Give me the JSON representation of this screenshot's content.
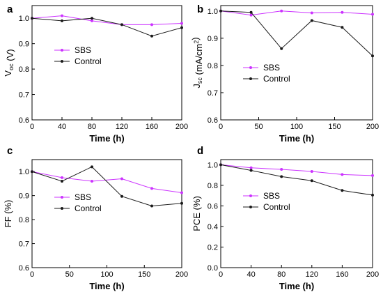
{
  "colors": {
    "sbs": "#cc33ff",
    "control": "#1a1a1a"
  },
  "chart_data": [
    {
      "panel": "a",
      "type": "line",
      "xlabel": "Time (h)",
      "ylabel": {
        "main": "V",
        "sub": "oc",
        "unit": " (V)"
      },
      "xlim": [
        0,
        200
      ],
      "ylim": [
        0.6,
        1.05
      ],
      "xticks": [
        0,
        40,
        80,
        120,
        160,
        200
      ],
      "yticks": [
        0.6,
        0.7,
        0.8,
        0.9,
        1.0
      ],
      "ytick_labels": [
        "0.6",
        "0.7",
        "0.8",
        "0.9",
        "1.0"
      ],
      "x": [
        0,
        40,
        80,
        120,
        160,
        200
      ],
      "legend_position": "middle-left",
      "series": [
        {
          "name": "SBS",
          "color_key": "sbs",
          "values": [
            1.0,
            1.01,
            0.99,
            0.975,
            0.975,
            0.98
          ]
        },
        {
          "name": "Control",
          "color_key": "control",
          "values": [
            1.0,
            0.99,
            1.0,
            0.975,
            0.93,
            0.963
          ]
        }
      ]
    },
    {
      "panel": "b",
      "type": "line",
      "xlabel": "Time (h)",
      "ylabel": {
        "main": "J",
        "sub": "sc",
        "unit": " (mA/cm",
        "sup": "2",
        "tail": ")"
      },
      "xlim": [
        0,
        200
      ],
      "ylim": [
        0.6,
        1.02
      ],
      "xticks": [
        0,
        50,
        100,
        150,
        200
      ],
      "yticks": [
        0.6,
        0.7,
        0.8,
        0.9,
        1.0
      ],
      "ytick_labels": [
        "0.6",
        "0.7",
        "0.8",
        "0.9",
        "1.0"
      ],
      "x": [
        0,
        40,
        80,
        120,
        160,
        200
      ],
      "legend_position": "middle-right",
      "series": [
        {
          "name": "SBS",
          "color_key": "sbs",
          "values": [
            1.0,
            0.985,
            1.0,
            0.993,
            0.995,
            0.988
          ]
        },
        {
          "name": "Control",
          "color_key": "control",
          "values": [
            1.0,
            0.995,
            0.862,
            0.965,
            0.94,
            0.835
          ]
        }
      ]
    },
    {
      "panel": "c",
      "type": "line",
      "xlabel": "Time (h)",
      "ylabel": {
        "main": "FF (%)"
      },
      "xlim": [
        0,
        200
      ],
      "ylim": [
        0.6,
        1.05
      ],
      "xticks": [
        0,
        50,
        100,
        150,
        200
      ],
      "yticks": [
        0.6,
        0.7,
        0.8,
        0.9,
        1.0
      ],
      "ytick_labels": [
        "0.6",
        "0.7",
        "0.8",
        "0.9",
        "1.0"
      ],
      "x": [
        0,
        40,
        80,
        120,
        160,
        200
      ],
      "legend_position": "middle-left",
      "series": [
        {
          "name": "SBS",
          "color_key": "sbs",
          "values": [
            1.0,
            0.975,
            0.96,
            0.97,
            0.93,
            0.912
          ]
        },
        {
          "name": "Control",
          "color_key": "control",
          "values": [
            1.0,
            0.96,
            1.02,
            0.897,
            0.857,
            0.868
          ]
        }
      ]
    },
    {
      "panel": "d",
      "type": "line",
      "xlabel": "Time (h)",
      "ylabel": {
        "main": "PCE (%)"
      },
      "xlim": [
        0,
        200
      ],
      "ylim": [
        0.0,
        1.05
      ],
      "xticks": [
        0,
        40,
        80,
        120,
        160,
        200
      ],
      "yticks": [
        0.0,
        0.2,
        0.4,
        0.6,
        0.8,
        1.0
      ],
      "ytick_labels": [
        "0.0",
        "0.2",
        "0.4",
        "0.6",
        "0.8",
        "1.0"
      ],
      "x": [
        0,
        40,
        80,
        120,
        160,
        200
      ],
      "legend_position": "middle-left",
      "series": [
        {
          "name": "SBS",
          "color_key": "sbs",
          "values": [
            1.0,
            0.97,
            0.955,
            0.935,
            0.905,
            0.895
          ]
        },
        {
          "name": "Control",
          "color_key": "control",
          "values": [
            1.0,
            0.945,
            0.885,
            0.845,
            0.75,
            0.705
          ]
        }
      ]
    }
  ]
}
